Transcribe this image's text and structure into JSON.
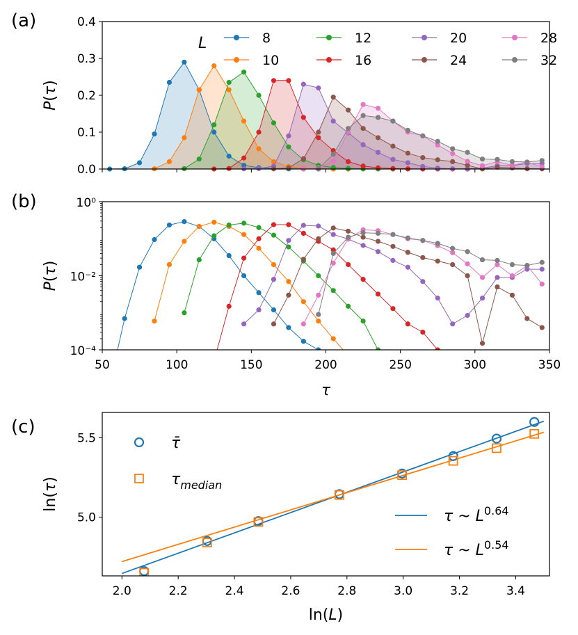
{
  "chart_data": [
    {
      "panel": "(a)",
      "type": "area",
      "ylabel": "P(τ)",
      "xlim": [
        50,
        350
      ],
      "ylim": [
        0,
        0.4
      ],
      "yticks": [
        "0.0",
        "0.1",
        "0.2",
        "0.3",
        "0.4"
      ],
      "legend_title": "L",
      "legend_location": "top-right",
      "grid": false,
      "series_ref": "series"
    },
    {
      "panel": "(b)",
      "type": "line",
      "yscale": "log",
      "ylabel": "P(τ)",
      "xlabel": "τ",
      "xlim": [
        50,
        350
      ],
      "ylim": [
        0.0001,
        1
      ],
      "yticks": [
        "10⁻⁴",
        "10⁻²",
        "10⁰"
      ],
      "xticks": [
        "50",
        "100",
        "150",
        "200",
        "250",
        "300",
        "350"
      ],
      "grid": false,
      "series_ref": "series"
    },
    {
      "panel": "(c)",
      "type": "scatter",
      "xlabel": "ln(L)",
      "ylabel": "ln(τ)",
      "xlim": [
        1.93,
        3.52
      ],
      "ylim": [
        4.63,
        5.66
      ],
      "xticks": [
        "2.0",
        "2.2",
        "2.4",
        "2.6",
        "2.8",
        "3.0",
        "3.2",
        "3.4"
      ],
      "yticks": [
        "5.0",
        "5.5"
      ],
      "legend_location": "top-left / bottom-right",
      "grid": false,
      "scatter_series": [
        {
          "name": "τ̄",
          "marker": "circle",
          "color": "#1f77b4",
          "x": [
            2.079,
            2.303,
            2.485,
            2.773,
            2.996,
            3.178,
            3.332,
            3.466
          ],
          "y": [
            4.66,
            4.85,
            4.975,
            5.145,
            5.275,
            5.385,
            5.495,
            5.6
          ]
        },
        {
          "name": "τ_median",
          "marker": "square",
          "color": "#ff7f0e",
          "x": [
            2.079,
            2.303,
            2.485,
            2.773,
            2.996,
            3.178,
            3.332,
            3.466
          ],
          "y": [
            4.65,
            4.84,
            4.97,
            5.14,
            5.265,
            5.355,
            5.435,
            5.525
          ]
        }
      ],
      "fit_lines": [
        {
          "name": "τ ~ L^0.64",
          "color": "#1f77b4",
          "x": [
            2.0,
            3.5
          ],
          "y": [
            4.645,
            5.605
          ]
        },
        {
          "name": "τ ~ L^0.54",
          "color": "#ff7f0e",
          "x": [
            2.0,
            3.5
          ],
          "y": [
            4.72,
            5.535
          ]
        }
      ]
    }
  ],
  "series": [
    {
      "name": "8",
      "color": "#1f77b4",
      "x": [
        55,
        65,
        75,
        85,
        95,
        105,
        115,
        125,
        135,
        145,
        155,
        165,
        175,
        185,
        195,
        205,
        215
      ],
      "y": [
        0.0,
        0.0007,
        0.017,
        0.095,
        0.235,
        0.29,
        0.215,
        0.1,
        0.035,
        0.01,
        0.0035,
        0.0012,
        0.0004,
        0.00017,
        0.0001,
        6e-05,
        4e-05
      ]
    },
    {
      "name": "10",
      "color": "#ff7f0e",
      "x": [
        85,
        95,
        105,
        115,
        125,
        135,
        145,
        155,
        165,
        175,
        185,
        195,
        205,
        215,
        225
      ],
      "y": [
        0.0006,
        0.02,
        0.085,
        0.215,
        0.28,
        0.215,
        0.13,
        0.055,
        0.02,
        0.007,
        0.002,
        0.0006,
        0.0002,
        7e-05,
        4e-05
      ]
    },
    {
      "name": "12",
      "color": "#2ca02c",
      "x": [
        105,
        115,
        125,
        135,
        145,
        155,
        165,
        175,
        185,
        195,
        205,
        215,
        225,
        235,
        245,
        255,
        265
      ],
      "y": [
        0.001,
        0.027,
        0.12,
        0.235,
        0.263,
        0.2,
        0.125,
        0.06,
        0.025,
        0.01,
        0.004,
        0.0015,
        0.0006,
        0.0001,
        6e-05,
        4e-05,
        3e-05
      ]
    },
    {
      "name": "16",
      "color": "#d62728",
      "x": [
        125,
        135,
        145,
        155,
        165,
        175,
        185,
        195,
        205,
        215,
        225,
        235,
        245,
        255,
        265,
        275,
        285,
        295
      ],
      "y": [
        5e-05,
        0.0015,
        0.03,
        0.1,
        0.24,
        0.24,
        0.14,
        0.085,
        0.05,
        0.02,
        0.008,
        0.0032,
        0.0013,
        0.0005,
        0.0003,
        0.0001,
        7e-05,
        5e-05
      ]
    },
    {
      "name": "20",
      "color": "#9467bd",
      "x": [
        145,
        155,
        165,
        175,
        185,
        195,
        205,
        215,
        225,
        235,
        245,
        255,
        265,
        275,
        285,
        295,
        305,
        315,
        325,
        335,
        345
      ],
      "y": [
        0.0005,
        0.0012,
        0.008,
        0.09,
        0.23,
        0.22,
        0.13,
        0.098,
        0.066,
        0.045,
        0.026,
        0.017,
        0.007,
        0.0025,
        0.0005,
        0.00085,
        0.0025,
        0.009,
        0.009,
        0.015,
        0.015
      ]
    },
    {
      "name": "24",
      "color": "#8c564b",
      "x": [
        165,
        175,
        185,
        195,
        205,
        215,
        225,
        235,
        245,
        255,
        265,
        275,
        285,
        295,
        305,
        315,
        325,
        335,
        345
      ],
      "y": [
        0.0005,
        0.003,
        0.028,
        0.1,
        0.195,
        0.16,
        0.11,
        0.085,
        0.062,
        0.043,
        0.031,
        0.025,
        0.02,
        0.01,
        0.00015,
        0.005,
        0.003,
        0.0007,
        0.0004
      ]
    },
    {
      "name": "28",
      "color": "#e377c2",
      "x": [
        185,
        195,
        205,
        215,
        225,
        235,
        245,
        255,
        265,
        275,
        285,
        295,
        305,
        315,
        325,
        335,
        345
      ],
      "y": [
        0.0005,
        0.003,
        0.022,
        0.1,
        0.175,
        0.165,
        0.13,
        0.1,
        0.09,
        0.065,
        0.042,
        0.021,
        0.009,
        0.02,
        0.01,
        0.019,
        0.006
      ]
    },
    {
      "name": "32",
      "color": "#7f7f7f",
      "x": [
        195,
        205,
        215,
        225,
        235,
        245,
        255,
        265,
        275,
        285,
        295,
        305,
        315,
        325,
        335,
        345
      ],
      "y": [
        0.0009,
        0.04,
        0.11,
        0.145,
        0.14,
        0.13,
        0.105,
        0.09,
        0.075,
        0.055,
        0.045,
        0.027,
        0.026,
        0.02,
        0.019,
        0.023
      ]
    }
  ]
}
